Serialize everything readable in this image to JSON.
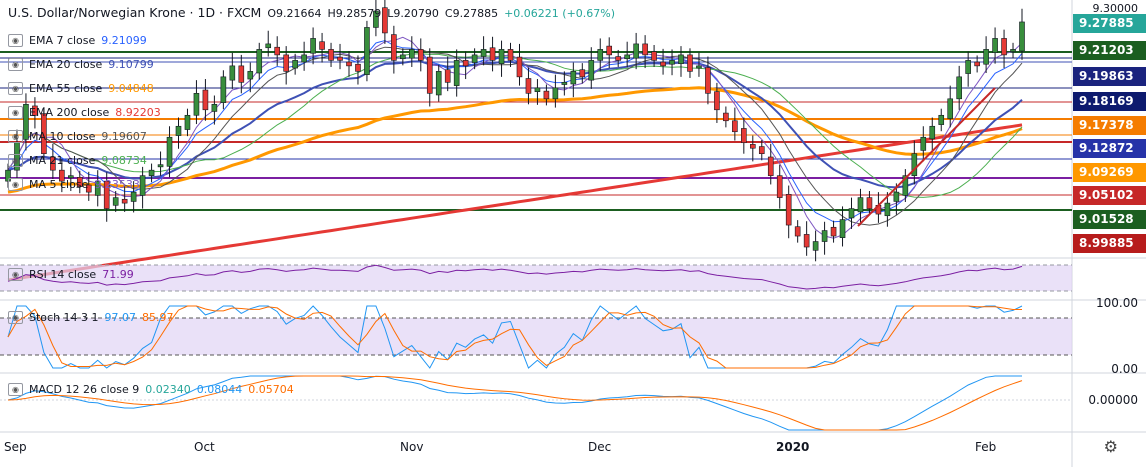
{
  "header": {
    "symbol": "U.S. Dollar/Norwegian Krone · 1D · FXCM",
    "open": "O9.21664",
    "high": "H9.28579",
    "low": "L9.20790",
    "close": "C9.27885",
    "change": "+0.06221 (+0.67%)"
  },
  "indicators": [
    {
      "label": "EMA 7 close",
      "value": "9.21099",
      "color": "#2962ff"
    },
    {
      "label": "EMA 20 close",
      "value": "9.10799",
      "color": "#3f51b5"
    },
    {
      "label": "EMA 55 close",
      "value": "9.04848",
      "color": "#ff9800"
    },
    {
      "label": "EMA 200 close",
      "value": "8.92203",
      "color": "#e53935"
    },
    {
      "label": "MA 10 close",
      "value": "9.19607",
      "color": "#555555"
    },
    {
      "label": "MA 21 close",
      "value": "9.08734",
      "color": "#4caf50"
    },
    {
      "label": "MA 5 close",
      "value": "9.23533",
      "color": "#7e57c2"
    }
  ],
  "price_axis": {
    "top_cut": "9.30000",
    "tags": [
      {
        "text": "9.27885",
        "bg": "#26a69a",
        "fg": "#ffffff"
      },
      {
        "text": "9.21203",
        "bg": "#1b5e20",
        "fg": "#ffffff"
      },
      {
        "text": "9.19863",
        "bg": "#1a237e",
        "fg": "#ffffff"
      },
      {
        "text": "9.18169",
        "bg": "#0d1a6e",
        "fg": "#ffffff"
      },
      {
        "text": "9.17378",
        "bg": "#f57c00",
        "fg": "#ffffff"
      },
      {
        "text": "9.12872",
        "bg": "#2633a8",
        "fg": "#ffffff"
      },
      {
        "text": "9.09269",
        "bg": "#ff9800",
        "fg": "#ffffff"
      },
      {
        "text": "9.05102",
        "bg": "#c62828",
        "fg": "#ffffff"
      },
      {
        "text": "9.01528",
        "bg": "#1b5e20",
        "fg": "#ffffff"
      },
      {
        "text": "8.99885",
        "bg": "#b71c1c",
        "fg": "#ffffff"
      }
    ]
  },
  "rsi": {
    "label": "RSI 14 close",
    "value": "71.99",
    "color": "#7b1fa2"
  },
  "stoch": {
    "label": "Stoch 14 3 1",
    "k": "97.07",
    "d": "85.97",
    "k_color": "#2196f3",
    "d_color": "#ff6d00",
    "axis_100": "100.00",
    "axis_0": "0.00"
  },
  "macd": {
    "label": "MACD 12 26 close 9",
    "hist": "0.02340",
    "macd": "0.08044",
    "signal": "0.05704",
    "axis_0": "0.00000",
    "macd_color": "#2196f3",
    "signal_color": "#ff6d00"
  },
  "x_axis": [
    "Sep",
    "Oct",
    "Nov",
    "Dec",
    "2020",
    "Feb"
  ],
  "colors": {
    "up": "#388e3c",
    "down": "#e53935",
    "panel_bg": "#e1d4f5"
  },
  "chart_data": {
    "type": "candlestick",
    "title": "U.S. Dollar/Norwegian Krone, 1D, FXCM",
    "x_range": [
      "2019-08-29",
      "2020-02-07"
    ],
    "closes": [
      9.0,
      9.05,
      9.12,
      9.1,
      9.03,
      9.0,
      8.98,
      8.99,
      8.97,
      8.96,
      8.98,
      8.93,
      8.95,
      8.94,
      8.96,
      8.99,
      9.0,
      9.01,
      9.06,
      9.08,
      9.1,
      9.14,
      9.11,
      9.12,
      9.17,
      9.19,
      9.16,
      9.18,
      9.22,
      9.23,
      9.21,
      9.18,
      9.2,
      9.21,
      9.24,
      9.22,
      9.2,
      9.2,
      9.19,
      9.18,
      9.26,
      9.29,
      9.25,
      9.2,
      9.21,
      9.22,
      9.2,
      9.14,
      9.18,
      9.16,
      9.2,
      9.19,
      9.21,
      9.22,
      9.2,
      9.22,
      9.2,
      9.17,
      9.14,
      9.15,
      9.13,
      9.15,
      9.16,
      9.18,
      9.17,
      9.2,
      9.22,
      9.21,
      9.2,
      9.21,
      9.23,
      9.21,
      9.2,
      9.19,
      9.2,
      9.21,
      9.18,
      9.19,
      9.14,
      9.11,
      9.09,
      9.07,
      9.05,
      9.04,
      9.03,
      8.99,
      8.95,
      8.9,
      8.88,
      8.86,
      8.87,
      8.89,
      8.88,
      8.91,
      8.93,
      8.95,
      8.93,
      8.92,
      8.94,
      8.96,
      8.99,
      9.03,
      9.06,
      9.08,
      9.1,
      9.13,
      9.17,
      9.2,
      9.19,
      9.22,
      9.24,
      9.21,
      9.22,
      9.27
    ]
  }
}
